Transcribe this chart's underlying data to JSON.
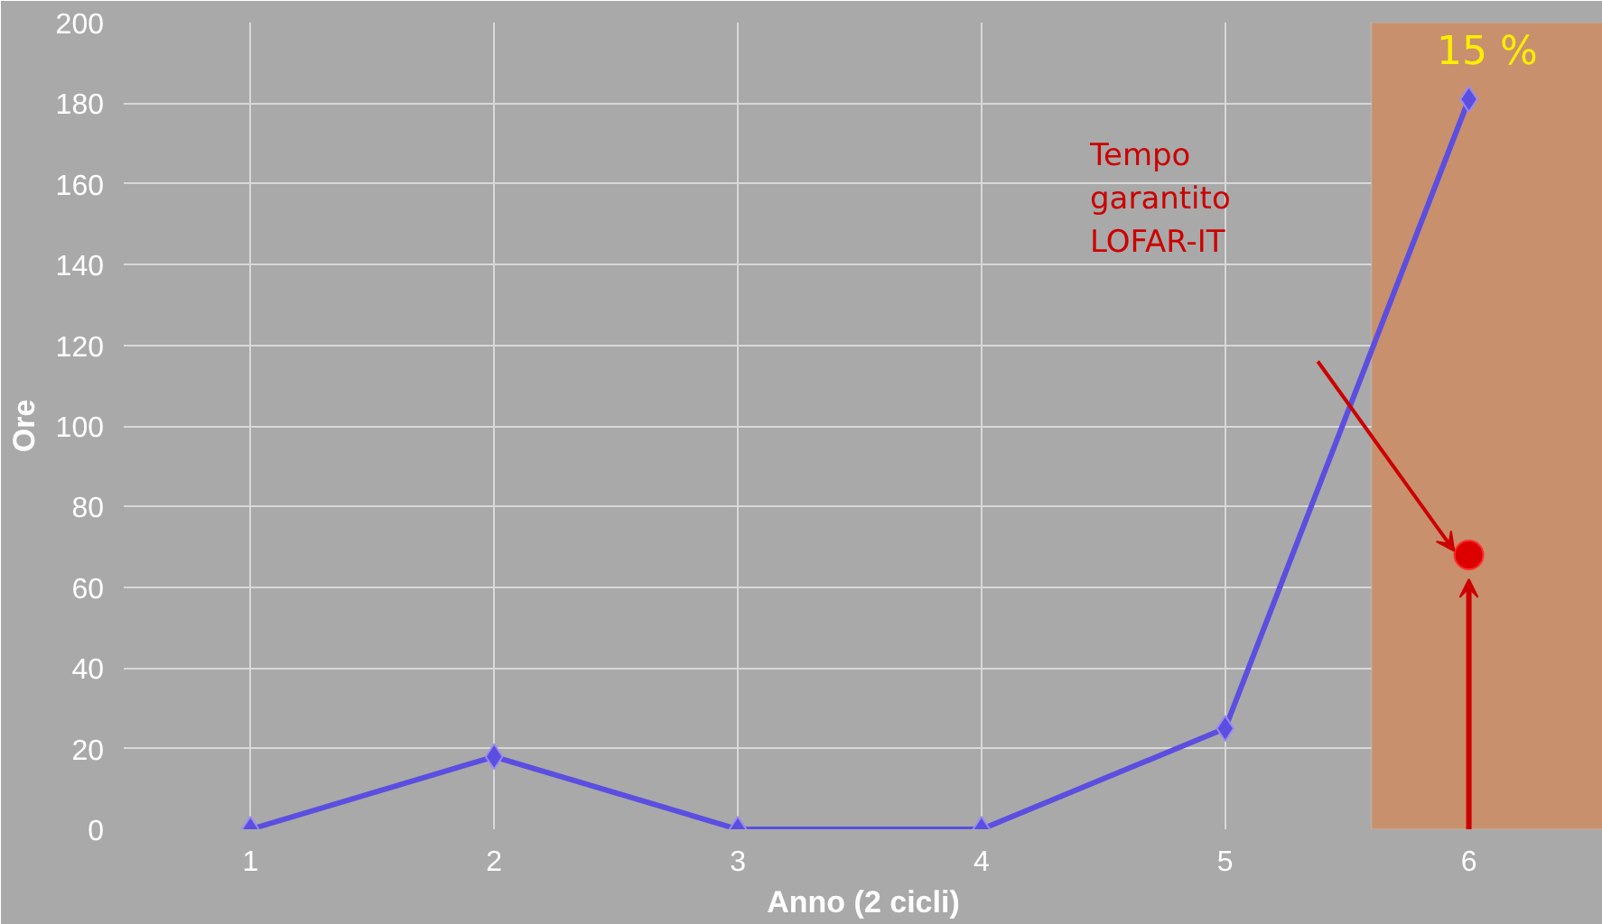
{
  "chart_data": {
    "type": "line",
    "xlabel": "Anno (2 cicli)",
    "ylabel": "Ore",
    "x": [
      1,
      2,
      3,
      4,
      5,
      6
    ],
    "series": [
      {
        "color": "#5b4ee0",
        "values": [
          0,
          18,
          0,
          0,
          25,
          181
        ],
        "marker": "diamond"
      },
      {
        "type": "scatter",
        "color": "#dd0000",
        "x": [
          6
        ],
        "values": [
          68
        ],
        "marker": "circle"
      }
    ],
    "xlim": [
      0.48,
      6.55
    ],
    "xticks": [
      1,
      2,
      3,
      4,
      5,
      6
    ],
    "ylim": [
      0,
      200
    ],
    "yticks": [
      0,
      20,
      40,
      60,
      80,
      100,
      120,
      140,
      160,
      180,
      200
    ],
    "grid": true,
    "bands": [
      {
        "axis": "x",
        "from": 5.6,
        "to": 6.55,
        "label": "15 %",
        "color": "#c8906c"
      }
    ],
    "annotations": [
      "Tempo\ngarantito\nLOFAR-IT"
    ]
  }
}
